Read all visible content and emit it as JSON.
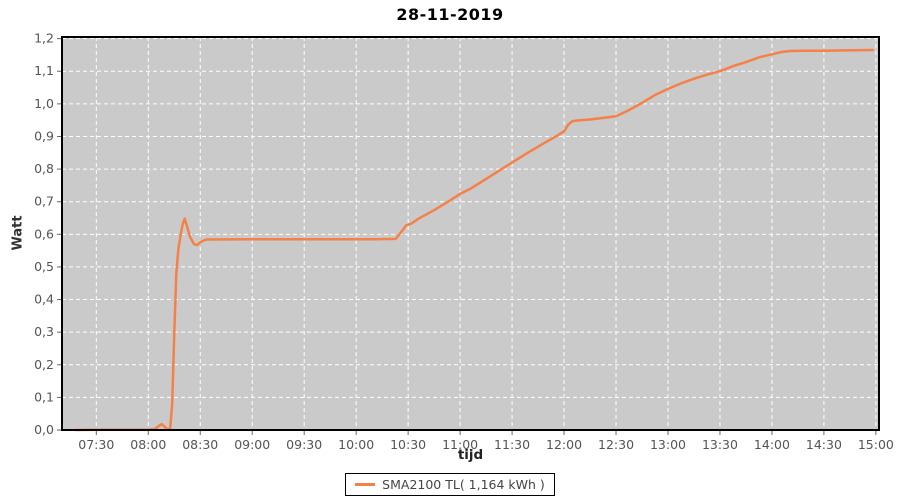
{
  "title": "28-11-2019",
  "colors": {
    "background": "#FFFFFF",
    "plot_background": "#CACACA",
    "gridline": "#FFFFFF",
    "plot_border": "#000000",
    "tick_mark": "#666666",
    "tick_label": "#555555",
    "axis_title": "#333333",
    "series_line": "#F58048",
    "legend_border": "#000000",
    "legend_text": "#444444"
  },
  "chart_data": {
    "type": "line",
    "title": "28-11-2019",
    "xlabel": "tijd",
    "ylabel": "Watt",
    "x_tick_labels": [
      "07:30",
      "08:00",
      "08:30",
      "09:00",
      "09:30",
      "10:00",
      "10:30",
      "11:00",
      "11:30",
      "12:00",
      "12:30",
      "13:00",
      "13:30",
      "14:00",
      "14:30",
      "15:00"
    ],
    "y_tick_labels": [
      "0,0",
      "0,1",
      "0,2",
      "0,3",
      "0,4",
      "0,5",
      "0,6",
      "0,7",
      "0,8",
      "0,9",
      "1,0",
      "1,1",
      "1,2"
    ],
    "xlim_hours": [
      7.17,
      15.03
    ],
    "ylim": [
      0,
      1.205
    ],
    "grid": "white dashed on gray",
    "legend_position": "bottom-center",
    "series": [
      {
        "name": "SMA2100 TL( 1,164 kWh )",
        "color": "#F58048",
        "points": [
          [
            7.3,
            0.0
          ],
          [
            7.55,
            0.001
          ],
          [
            7.8,
            0.001
          ],
          [
            8.0,
            0.001
          ],
          [
            8.06,
            0.002
          ],
          [
            8.1,
            0.012
          ],
          [
            8.13,
            0.018
          ],
          [
            8.15,
            0.012
          ],
          [
            8.18,
            0.003
          ],
          [
            8.21,
            0.002
          ],
          [
            8.23,
            0.08
          ],
          [
            8.25,
            0.3
          ],
          [
            8.27,
            0.48
          ],
          [
            8.29,
            0.555
          ],
          [
            8.31,
            0.595
          ],
          [
            8.33,
            0.63
          ],
          [
            8.35,
            0.648
          ],
          [
            8.37,
            0.628
          ],
          [
            8.4,
            0.593
          ],
          [
            8.44,
            0.57
          ],
          [
            8.47,
            0.567
          ],
          [
            8.51,
            0.578
          ],
          [
            8.56,
            0.584
          ],
          [
            9.0,
            0.585
          ],
          [
            9.5,
            0.585
          ],
          [
            10.0,
            0.585
          ],
          [
            10.2,
            0.585
          ],
          [
            10.38,
            0.586
          ],
          [
            10.44,
            0.61
          ],
          [
            10.48,
            0.627
          ],
          [
            10.53,
            0.633
          ],
          [
            10.6,
            0.648
          ],
          [
            10.75,
            0.674
          ],
          [
            10.9,
            0.703
          ],
          [
            11.0,
            0.724
          ],
          [
            11.1,
            0.74
          ],
          [
            11.25,
            0.77
          ],
          [
            11.4,
            0.8
          ],
          [
            11.5,
            0.82
          ],
          [
            11.65,
            0.85
          ],
          [
            11.8,
            0.878
          ],
          [
            11.92,
            0.9
          ],
          [
            12.0,
            0.916
          ],
          [
            12.04,
            0.936
          ],
          [
            12.08,
            0.947
          ],
          [
            12.15,
            0.95
          ],
          [
            12.25,
            0.952
          ],
          [
            12.4,
            0.958
          ],
          [
            12.5,
            0.962
          ],
          [
            12.62,
            0.98
          ],
          [
            12.75,
            1.003
          ],
          [
            12.88,
            1.028
          ],
          [
            13.0,
            1.046
          ],
          [
            13.12,
            1.062
          ],
          [
            13.25,
            1.077
          ],
          [
            13.38,
            1.09
          ],
          [
            13.5,
            1.1
          ],
          [
            13.63,
            1.116
          ],
          [
            13.75,
            1.128
          ],
          [
            13.88,
            1.143
          ],
          [
            14.0,
            1.152
          ],
          [
            14.08,
            1.158
          ],
          [
            14.17,
            1.162
          ],
          [
            14.3,
            1.163
          ],
          [
            14.5,
            1.163
          ],
          [
            14.7,
            1.164
          ],
          [
            14.97,
            1.165
          ]
        ]
      }
    ]
  }
}
